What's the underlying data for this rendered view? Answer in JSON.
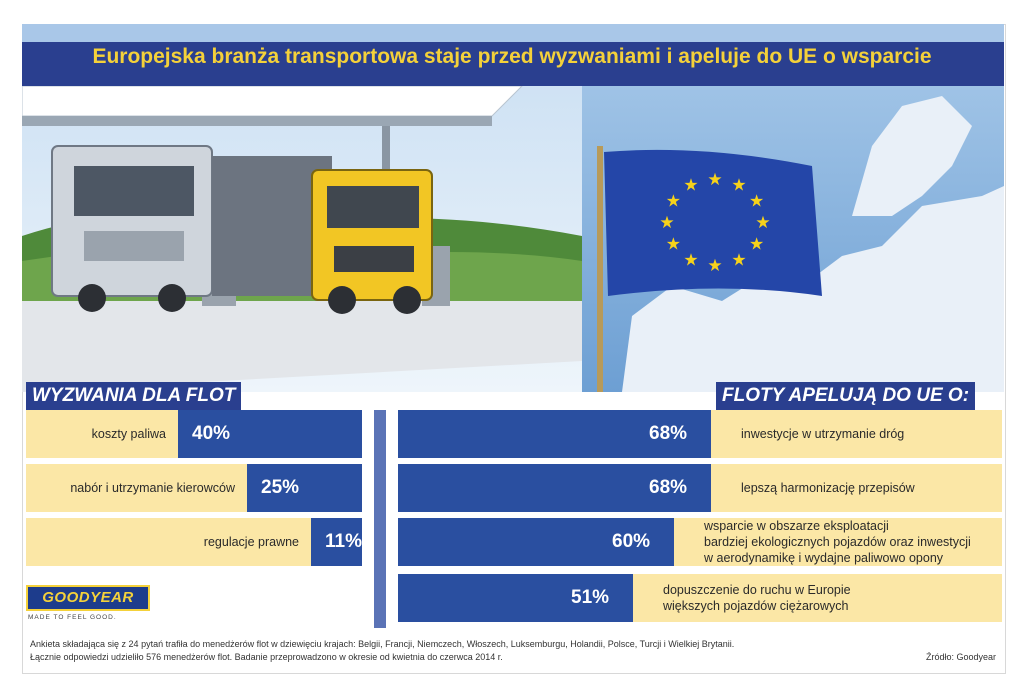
{
  "title": "Europejska branża transportowa staje przed wyzwaniami i apeluje do UE o wsparcie",
  "left_section": {
    "heading": "WYZWANIA DLA FLOT"
  },
  "right_section": {
    "heading": "FLOTY APELUJĄ DO UE O:"
  },
  "chart_data": [
    {
      "type": "bar",
      "title": "WYZWANIA DLA FLOT",
      "orientation": "horizontal",
      "categories": [
        "koszty paliwa",
        "nabór i utrzymanie kierowców",
        "regulacje prawne"
      ],
      "values": [
        40,
        25,
        11
      ],
      "value_labels": [
        "40%",
        "25%",
        "11%"
      ],
      "unit": "%",
      "xlim": [
        0,
        100
      ]
    },
    {
      "type": "bar",
      "title": "FLOTY APELUJĄ DO UE O:",
      "orientation": "horizontal",
      "categories": [
        "inwestycje w utrzymanie dróg",
        "lepszą harmonizację przepisów",
        "wsparcie w obszarze eksploatacji bardziej ekologicznych pojazdów oraz inwestycji w aerodynamikę i wydajne paliwowo opony",
        "dopuszczenie do ruchu w Europie większych pojazdów ciężarowych"
      ],
      "label_lines": [
        [
          "inwestycje w utrzymanie dróg"
        ],
        [
          "lepszą harmonizację przepisów"
        ],
        [
          "wsparcie w obszarze eksploatacji",
          "bardziej ekologicznych pojazdów oraz inwestycji",
          "w aerodynamikę i wydajne paliwowo opony"
        ],
        [
          "dopuszczenie do ruchu w Europie",
          "większych pojazdów ciężarowych"
        ]
      ],
      "values": [
        68,
        68,
        60,
        51
      ],
      "value_labels": [
        "68%",
        "68%",
        "60%",
        "51%"
      ],
      "unit": "%",
      "xlim": [
        0,
        100
      ]
    }
  ],
  "logo": {
    "brand": "GOODYEAR",
    "tagline": "MADE TO FEEL GOOD."
  },
  "footnote": {
    "line1": "Ankieta składająca się z 24 pytań trafiła do menedżerów flot w dziewięciu krajach: Belgii, Francji, Niemczech, Włoszech, Luksemburgu, Holandii, Polsce, Turcji i Wielkiej Brytanii.",
    "line2": "Łącznie odpowiedzi udzieliło 576 menedżerów flot. Badanie przeprowadzono w okresie od kwietnia do czerwca 2014 r."
  },
  "source": "Źródło: Goodyear",
  "colors": {
    "navy": "#2a3f8f",
    "bar": "#2a4fa0",
    "row_bg": "#fbe7a6",
    "title_text": "#f4d13a",
    "eu_flag": "#2446a8",
    "eu_star": "#f6d21b"
  }
}
